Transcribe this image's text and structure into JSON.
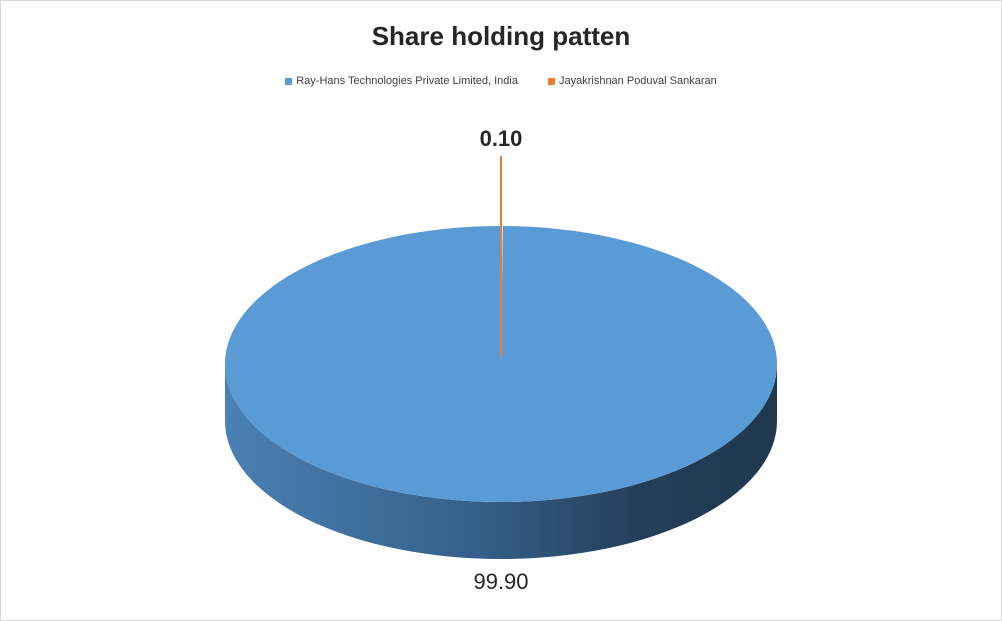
{
  "chart_data": {
    "type": "pie",
    "style": "3d-exploded",
    "title": "Share holding patten",
    "legend_position": "top",
    "categories": [
      "Ray-Hans Technologies Private Limited, India",
      "Jayakrishnan Poduval Sankaran"
    ],
    "values": [
      99.9,
      0.1
    ],
    "data_labels": [
      "99.90",
      "0.10"
    ],
    "colors": [
      "#5b9bd5",
      "#ed7d31"
    ]
  }
}
